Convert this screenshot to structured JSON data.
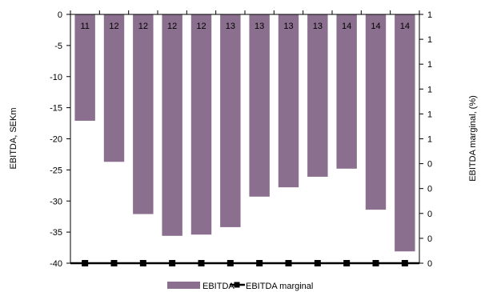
{
  "chart_data": {
    "type": "bar",
    "categories": [
      "",
      "",
      "",
      "",
      "",
      "",
      "",
      "",
      "",
      "",
      "",
      ""
    ],
    "series": [
      {
        "name": "EBITDA",
        "type": "bar",
        "axis": "left",
        "color": "#8B6F8E",
        "values": [
          -17.1,
          -23.7,
          -32.1,
          -35.6,
          -35.4,
          -34.2,
          -29.3,
          -27.8,
          -26.1,
          -24.8,
          -31.4,
          -38.1
        ],
        "data_labels": [
          "11",
          "12",
          "12",
          "12",
          "12",
          "13",
          "13",
          "13",
          "13",
          "14",
          "14",
          "14"
        ]
      },
      {
        "name": "EBITDA marginal",
        "type": "line",
        "axis": "right",
        "color": "#000000",
        "marker": "square",
        "values": [
          0,
          0,
          0,
          0,
          0,
          0,
          0,
          0,
          0,
          0,
          0,
          0
        ]
      }
    ],
    "ylabel": "EBITDA, SEKm",
    "ylim": [
      -40,
      0
    ],
    "yticks": [
      "0",
      "-5",
      "-10",
      "-15",
      "-20",
      "-25",
      "-30",
      "-35",
      "-40"
    ],
    "y2label": "EBITDA marginal, (%)",
    "y2ticks": [
      "1",
      "1",
      "1",
      "1",
      "1",
      "1",
      "0",
      "0",
      "0",
      "0",
      "0"
    ],
    "grid": false,
    "legend_position": "bottom"
  }
}
